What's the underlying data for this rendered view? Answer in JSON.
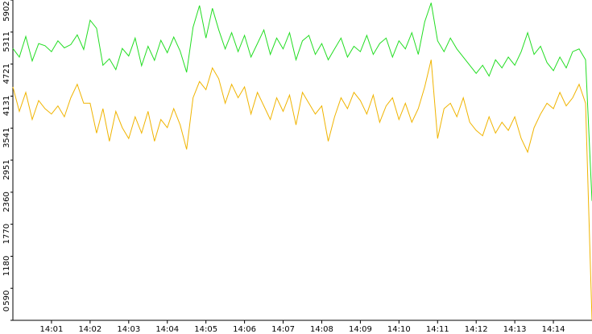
{
  "chart_data": {
    "type": "line",
    "series": [
      {
        "name": null,
        "color": "#22dd22",
        "values": [
          5010,
          4850,
          5230,
          4780,
          5100,
          5060,
          4950,
          5150,
          5020,
          5080,
          5260,
          4990,
          5530,
          5380,
          4700,
          4820,
          4620,
          5010,
          4870,
          5200,
          4690,
          5050,
          4790,
          5160,
          4930,
          5220,
          4960,
          4570,
          5400,
          5800,
          5200,
          5750,
          5350,
          5000,
          5300,
          4950,
          5250,
          4850,
          5100,
          5350,
          4900,
          5200,
          5000,
          5300,
          4800,
          5150,
          5250,
          4900,
          5100,
          4800,
          5000,
          5200,
          4850,
          5050,
          4950,
          5250,
          4900,
          5100,
          5200,
          4850,
          5150,
          5000,
          5300,
          4900,
          5500,
          5850,
          5150,
          4950,
          5200,
          5000,
          4850,
          4700,
          4550,
          4700,
          4500,
          4800,
          4650,
          4850,
          4700,
          4950,
          5300,
          4900,
          5050,
          4750,
          4600,
          4850,
          4650,
          4950,
          5000,
          4800,
          2200
        ]
      },
      {
        "name": null,
        "color": "#f0b400",
        "values": [
          4300,
          3850,
          4200,
          3700,
          4050,
          3900,
          3800,
          3950,
          3750,
          4100,
          4350,
          4000,
          4000,
          3450,
          3900,
          3300,
          3850,
          3550,
          3350,
          3750,
          3450,
          3850,
          3300,
          3700,
          3550,
          3900,
          3600,
          3150,
          4100,
          4400,
          4250,
          4650,
          4450,
          4000,
          4350,
          4100,
          4300,
          3800,
          4200,
          3950,
          3700,
          4100,
          3850,
          4150,
          3600,
          4200,
          4000,
          3800,
          3950,
          3300,
          3750,
          4100,
          3900,
          4200,
          4050,
          3800,
          4150,
          3650,
          3950,
          4100,
          3700,
          4000,
          3650,
          3900,
          4300,
          4800,
          3350,
          3900,
          4000,
          3750,
          4100,
          3650,
          3500,
          3400,
          3750,
          3450,
          3650,
          3500,
          3750,
          3350,
          3100,
          3550,
          3800,
          4000,
          3900,
          4200,
          3950,
          4100,
          4350,
          4000,
          0
        ]
      }
    ],
    "xlim": [
      0,
      90
    ],
    "xticks": [
      {
        "value": 6,
        "label": "14:01"
      },
      {
        "value": 12,
        "label": "14:02"
      },
      {
        "value": 18,
        "label": "14:03"
      },
      {
        "value": 24,
        "label": "14:04"
      },
      {
        "value": 30,
        "label": "14:05"
      },
      {
        "value": 36,
        "label": "14:06"
      },
      {
        "value": 42,
        "label": "14:07"
      },
      {
        "value": 48,
        "label": "14:08"
      },
      {
        "value": 54,
        "label": "14:09"
      },
      {
        "value": 60,
        "label": "14:10"
      },
      {
        "value": 66,
        "label": "14:11"
      },
      {
        "value": 72,
        "label": "14:12"
      },
      {
        "value": 78,
        "label": "14:13"
      },
      {
        "value": 84,
        "label": "14:14"
      }
    ],
    "ylim": [
      0,
      5902
    ],
    "yticks": [
      0,
      590,
      1180,
      1770,
      2360,
      2951,
      3541,
      4131,
      4721,
      5311,
      5902
    ]
  }
}
